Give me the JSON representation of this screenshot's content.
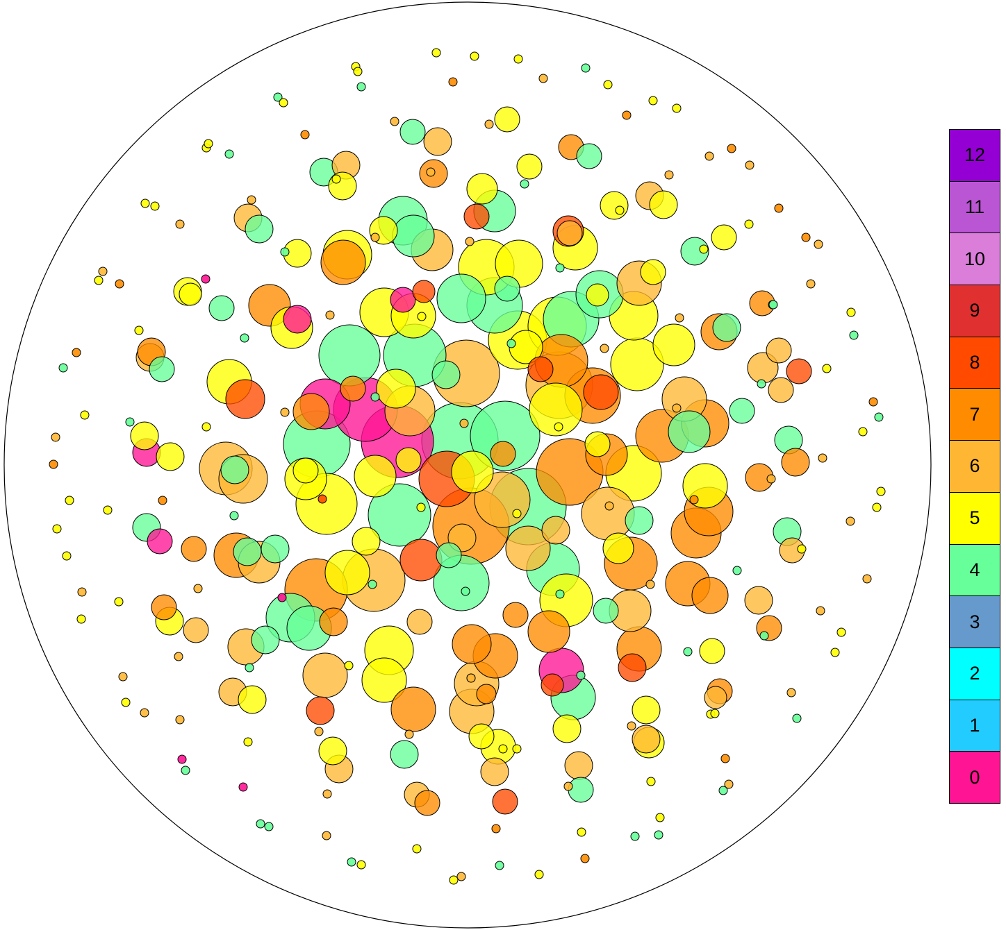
{
  "legend": {
    "classes": [
      {
        "label": "12",
        "color": "#9400D3"
      },
      {
        "label": "11",
        "color": "#BA55D3"
      },
      {
        "label": "10",
        "color": "#DA7EDA"
      },
      {
        "label": "9",
        "color": "#E03030"
      },
      {
        "label": "8",
        "color": "#FF4A00"
      },
      {
        "label": "7",
        "color": "#FF8C00"
      },
      {
        "label": "6",
        "color": "#FFB733"
      },
      {
        "label": "5",
        "color": "#FFFF00"
      },
      {
        "label": "4",
        "color": "#66FF99"
      },
      {
        "label": "3",
        "color": "#6699CC"
      },
      {
        "label": "2",
        "color": "#00FFFF"
      },
      {
        "label": "1",
        "color": "#22CCFF"
      },
      {
        "label": "0",
        "color": "#FF1493"
      }
    ]
  },
  "fill_colors": {
    "0": "#FF1493",
    "4": "#66FF99",
    "5": "#FFFF00",
    "6": "#FFB733",
    "7": "#FF8C00",
    "8": "#FF4A00",
    "9": "#E03030"
  }
}
